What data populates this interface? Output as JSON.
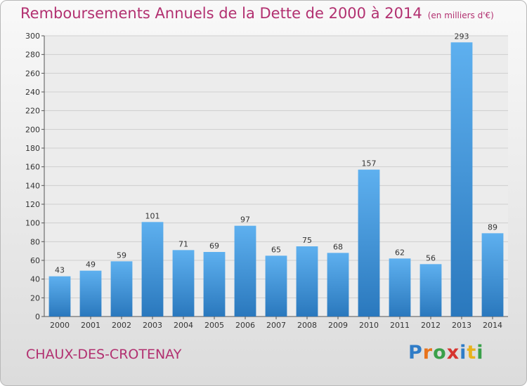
{
  "title": "Remboursements Annuels de la Dette de 2000 à 2014",
  "unit": "(en milliers d'€)",
  "commune": "CHAUX-DES-CROTENAY",
  "brand": {
    "letters": [
      "P",
      "r",
      "o",
      "x",
      "i",
      "t",
      "i"
    ],
    "colors": [
      "#2f7cc7",
      "#e8731c",
      "#3aa04a",
      "#d6342f",
      "#2f7cc7",
      "#e8b21c",
      "#3aa04a"
    ]
  },
  "colors": {
    "accent": "#b23070",
    "bar": "#4a9de0"
  },
  "chart_data": {
    "type": "bar",
    "categories": [
      "2000",
      "2001",
      "2002",
      "2003",
      "2004",
      "2005",
      "2006",
      "2007",
      "2008",
      "2009",
      "2010",
      "2011",
      "2012",
      "2013",
      "2014"
    ],
    "values": [
      43,
      49,
      59,
      101,
      71,
      69,
      97,
      65,
      75,
      68,
      157,
      62,
      56,
      293,
      89
    ],
    "ylim": [
      0,
      300
    ],
    "yticks": [
      0,
      20,
      40,
      60,
      80,
      100,
      120,
      140,
      160,
      180,
      200,
      220,
      240,
      260,
      280,
      300
    ],
    "grid": true,
    "legend": "none"
  }
}
